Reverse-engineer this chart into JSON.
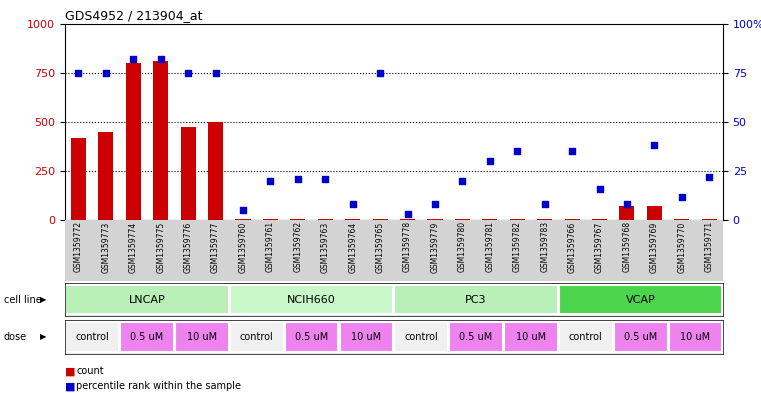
{
  "title": "GDS4952 / 213904_at",
  "samples": [
    "GSM1359772",
    "GSM1359773",
    "GSM1359774",
    "GSM1359775",
    "GSM1359776",
    "GSM1359777",
    "GSM1359760",
    "GSM1359761",
    "GSM1359762",
    "GSM1359763",
    "GSM1359764",
    "GSM1359765",
    "GSM1359778",
    "GSM1359779",
    "GSM1359780",
    "GSM1359781",
    "GSM1359782",
    "GSM1359783",
    "GSM1359766",
    "GSM1359767",
    "GSM1359768",
    "GSM1359769",
    "GSM1359770",
    "GSM1359771"
  ],
  "counts": [
    420,
    450,
    800,
    810,
    475,
    500,
    5,
    5,
    5,
    5,
    5,
    5,
    5,
    5,
    5,
    5,
    5,
    5,
    5,
    5,
    70,
    70,
    5,
    5
  ],
  "percentile": [
    75,
    75,
    82,
    82,
    75,
    75,
    5,
    20,
    21,
    21,
    8,
    75,
    3,
    8,
    20,
    30,
    35,
    8,
    35,
    16,
    8,
    38,
    12,
    22
  ],
  "ylim_left": [
    0,
    1000
  ],
  "ylim_right": [
    0,
    100
  ],
  "yticks_left": [
    0,
    250,
    500,
    750,
    1000
  ],
  "yticks_right": [
    0,
    25,
    50,
    75,
    100
  ],
  "bar_color": "#cc0000",
  "dot_color": "#0000cc",
  "bg_color": "#ffffff",
  "label_bg_color": "#d3d3d3",
  "cell_line_data": [
    {
      "name": "LNCAP",
      "start": 0,
      "end": 6,
      "color": "#b8f0b8"
    },
    {
      "name": "NCIH660",
      "start": 6,
      "end": 12,
      "color": "#c8f8c8"
    },
    {
      "name": "PC3",
      "start": 12,
      "end": 18,
      "color": "#b8f0b8"
    },
    {
      "name": "VCAP",
      "start": 18,
      "end": 24,
      "color": "#4cd44c"
    }
  ],
  "dose_groups": [
    {
      "label": "control",
      "start": 0,
      "end": 2,
      "color": "#f0f0f0"
    },
    {
      "label": "0.5 uM",
      "start": 2,
      "end": 4,
      "color": "#ee82ee"
    },
    {
      "label": "10 uM",
      "start": 4,
      "end": 6,
      "color": "#ee82ee"
    },
    {
      "label": "control",
      "start": 6,
      "end": 8,
      "color": "#f0f0f0"
    },
    {
      "label": "0.5 uM",
      "start": 8,
      "end": 10,
      "color": "#ee82ee"
    },
    {
      "label": "10 uM",
      "start": 10,
      "end": 12,
      "color": "#ee82ee"
    },
    {
      "label": "control",
      "start": 12,
      "end": 14,
      "color": "#f0f0f0"
    },
    {
      "label": "0.5 uM",
      "start": 14,
      "end": 16,
      "color": "#ee82ee"
    },
    {
      "label": "10 uM",
      "start": 16,
      "end": 18,
      "color": "#ee82ee"
    },
    {
      "label": "control",
      "start": 18,
      "end": 20,
      "color": "#f0f0f0"
    },
    {
      "label": "0.5 uM",
      "start": 20,
      "end": 22,
      "color": "#ee82ee"
    },
    {
      "label": "10 uM",
      "start": 22,
      "end": 24,
      "color": "#ee82ee"
    }
  ]
}
